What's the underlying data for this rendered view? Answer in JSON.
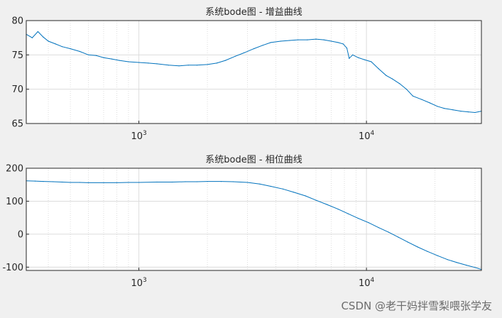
{
  "colors": {
    "series": "#0072bd",
    "background": "#f0f0f0",
    "plot_area": "#ffffff",
    "grid": "#dcdcdc",
    "axis": "#262626"
  },
  "watermark": "CSDN @老干妈拌雪梨喂张学友",
  "chart_data": [
    {
      "type": "line",
      "title": "系统bode图 - 增益曲线",
      "xscale": "log",
      "xlim": [
        320,
        32000
      ],
      "ylim": [
        65,
        80
      ],
      "yticks": [
        65,
        70,
        75,
        80
      ],
      "xticks": [
        1000,
        10000
      ],
      "xtick_labels": [
        {
          "base": "10",
          "exp": "3"
        },
        {
          "base": "10",
          "exp": "4"
        }
      ],
      "grid": true,
      "legend": "none",
      "series": [
        {
          "x": [
            320,
            340,
            360,
            380,
            400,
            430,
            460,
            500,
            550,
            600,
            650,
            700,
            760,
            820,
            900,
            1000,
            1100,
            1200,
            1350,
            1500,
            1650,
            1800,
            2000,
            2200,
            2400,
            2650,
            2900,
            3200,
            3500,
            3800,
            4200,
            4600,
            5000,
            5500,
            6000,
            6500,
            7000,
            7500,
            7900,
            8200,
            8400,
            8700,
            9200,
            9800,
            10500,
            11300,
            12200,
            13000,
            14000,
            15000,
            16000,
            17500,
            19000,
            20500,
            22000,
            24000,
            26000,
            28000,
            30000,
            32000
          ],
          "y": [
            78.0,
            77.5,
            78.4,
            77.6,
            77.0,
            76.6,
            76.2,
            75.9,
            75.5,
            75.0,
            74.9,
            74.6,
            74.4,
            74.2,
            74.0,
            73.9,
            73.8,
            73.7,
            73.5,
            73.4,
            73.5,
            73.5,
            73.6,
            73.8,
            74.2,
            74.8,
            75.3,
            75.9,
            76.4,
            76.8,
            77.0,
            77.1,
            77.2,
            77.2,
            77.3,
            77.2,
            77.0,
            76.8,
            76.6,
            76.0,
            74.5,
            75.0,
            74.6,
            74.3,
            74.0,
            73.0,
            72.0,
            71.5,
            70.8,
            70.0,
            69.0,
            68.5,
            68.0,
            67.5,
            67.2,
            67.0,
            66.8,
            66.7,
            66.6,
            66.8
          ]
        }
      ]
    },
    {
      "type": "line",
      "title": "系统bode图 - 相位曲线",
      "xscale": "log",
      "xlim": [
        320,
        32000
      ],
      "ylim": [
        -110,
        200
      ],
      "yticks": [
        -100,
        0,
        100,
        200
      ],
      "xticks": [
        1000,
        10000
      ],
      "xtick_labels": [
        {
          "base": "10",
          "exp": "3"
        },
        {
          "base": "10",
          "exp": "4"
        }
      ],
      "grid": true,
      "legend": "none",
      "series": [
        {
          "x": [
            320,
            350,
            380,
            420,
            460,
            500,
            550,
            600,
            700,
            800,
            900,
            1000,
            1200,
            1400,
            1600,
            1800,
            2000,
            2300,
            2600,
            3000,
            3400,
            3800,
            4300,
            4800,
            5400,
            6000,
            6700,
            7500,
            8300,
            9200,
            10200,
            11300,
            12500,
            13800,
            15200,
            16800,
            18500,
            20500,
            22700,
            25000,
            27500,
            30000,
            32000
          ],
          "y": [
            162,
            161,
            160,
            159,
            158,
            157,
            157,
            156,
            156,
            156,
            157,
            157,
            158,
            158,
            159,
            159,
            160,
            160,
            159,
            157,
            152,
            145,
            137,
            127,
            116,
            103,
            90,
            76,
            62,
            48,
            35,
            20,
            6,
            -9,
            -24,
            -39,
            -52,
            -65,
            -77,
            -86,
            -94,
            -101,
            -107
          ]
        }
      ]
    }
  ]
}
